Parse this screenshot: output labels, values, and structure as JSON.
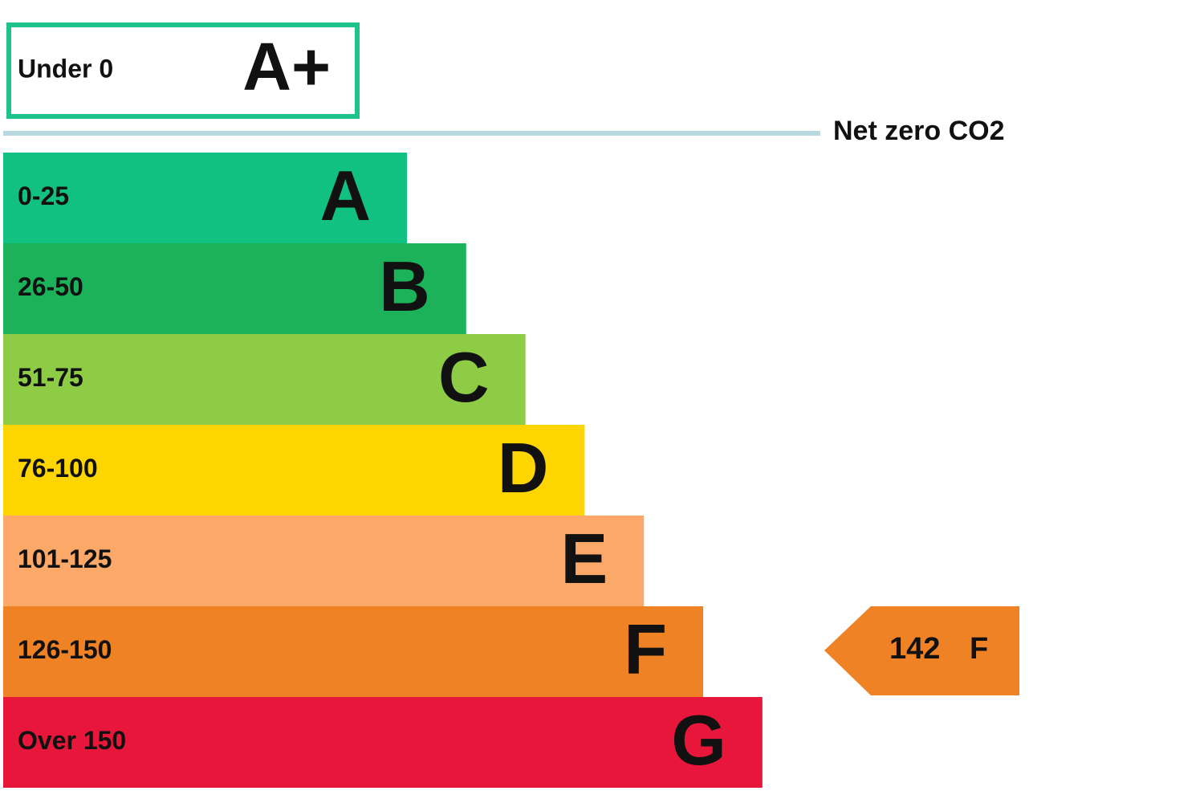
{
  "top_band": {
    "range": "Under 0",
    "letter": "A+",
    "color": "#1dc38a"
  },
  "net_zero_label": "Net zero CO2",
  "bands": [
    {
      "range": "0-25",
      "letter": "A",
      "color": "#10c181"
    },
    {
      "range": "26-50",
      "letter": "B",
      "color": "#1bb25a"
    },
    {
      "range": "51-75",
      "letter": "C",
      "color": "#8dcc44"
    },
    {
      "range": "76-100",
      "letter": "D",
      "color": "#fed500"
    },
    {
      "range": "101-125",
      "letter": "E",
      "color": "#fba869"
    },
    {
      "range": "126-150",
      "letter": "F",
      "color": "#ee8224"
    },
    {
      "range": "Over 150",
      "letter": "G",
      "color": "#e8163a"
    }
  ],
  "indicator": {
    "value": "142",
    "letter": "F",
    "color": "#ee8224"
  }
}
